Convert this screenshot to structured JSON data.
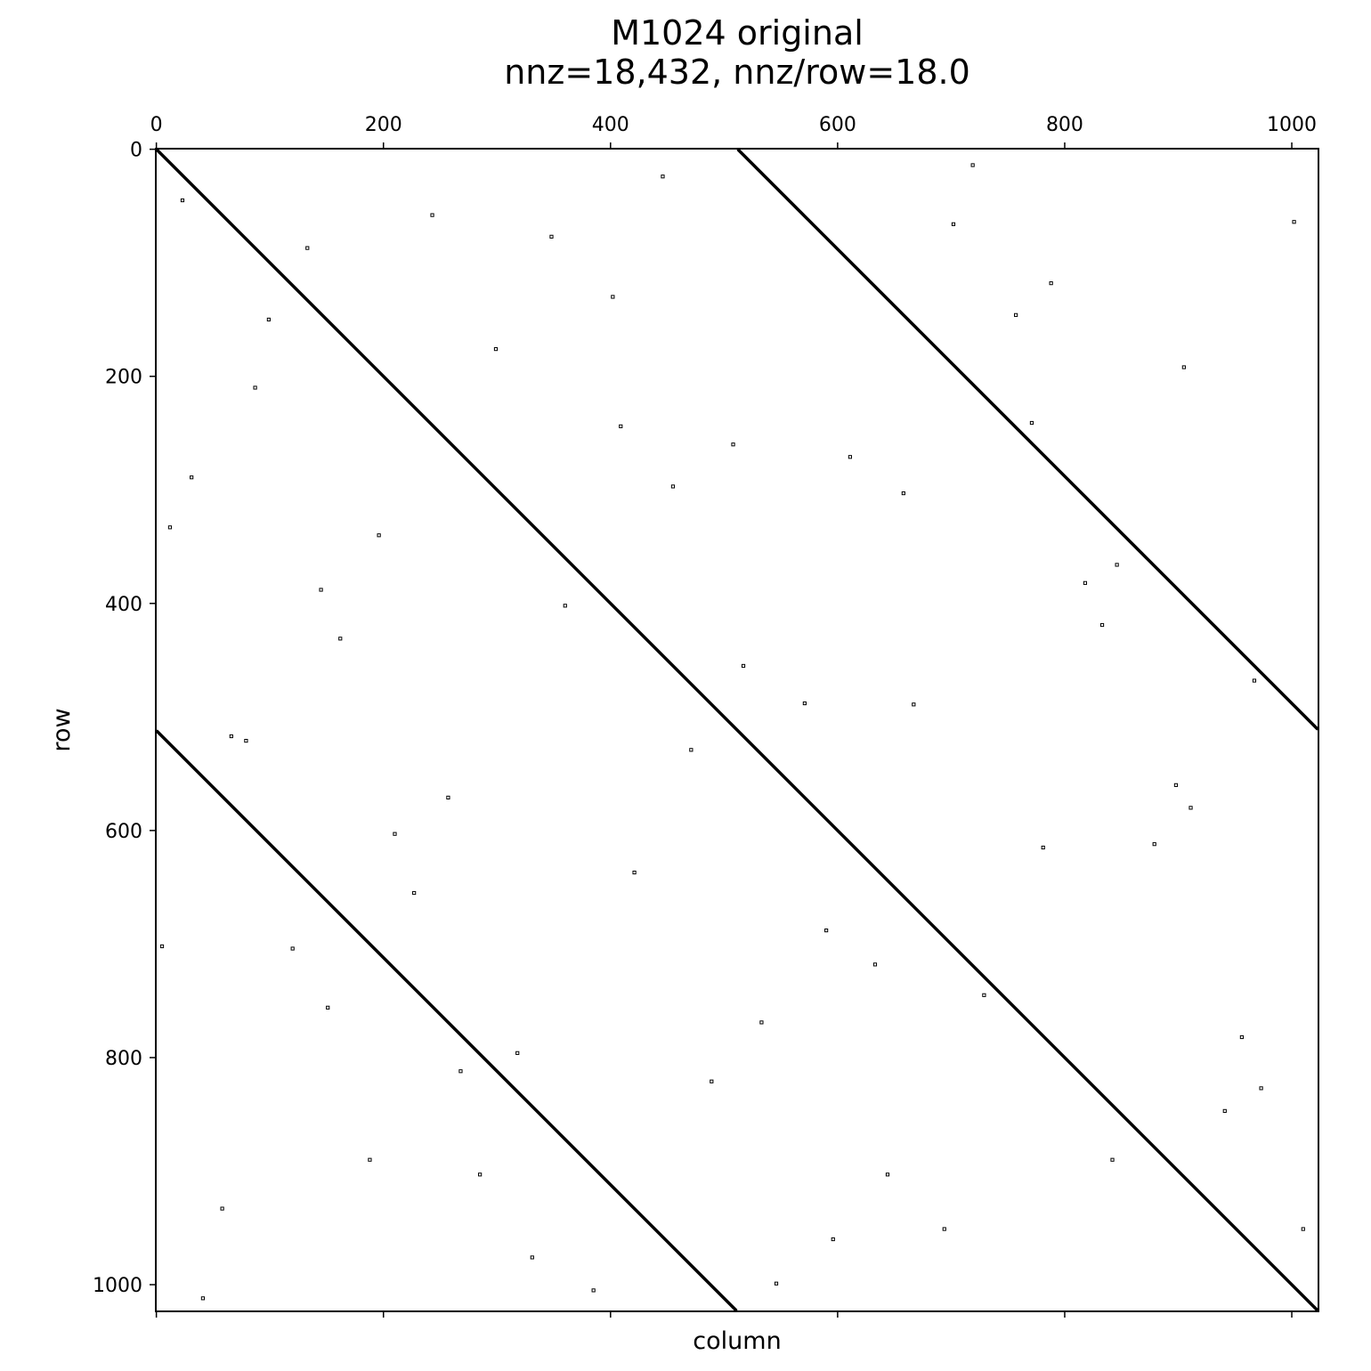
{
  "chart_data": {
    "type": "spy",
    "title": "M1024 original",
    "subtitle": "nnz=18,432, nnz/row=18.0",
    "xlabel": "column",
    "ylabel": "row",
    "xlim": [
      -0.5,
      1023.5
    ],
    "ylim": [
      1023.5,
      -0.5
    ],
    "xticks": [
      0,
      200,
      400,
      600,
      800,
      1000
    ],
    "yticks": [
      0,
      200,
      400,
      600,
      800,
      1000
    ],
    "color": "#000000",
    "diagonals": [
      {
        "x": [
          0,
          1023
        ],
        "y": [
          0,
          1023
        ]
      },
      {
        "x": [
          512,
          1023
        ],
        "y": [
          0,
          511
        ]
      },
      {
        "x": [
          0,
          511
        ],
        "y": [
          512,
          1023
        ]
      }
    ],
    "points": {
      "x": [
        23,
        87,
        145,
        210,
        268,
        331,
        402,
        455,
        517,
        590,
        644,
        702,
        771,
        833,
        898,
        956,
        1010,
        12,
        66,
        120,
        188,
        243,
        299,
        360,
        421,
        489,
        546,
        611,
        667,
        729,
        788,
        846,
        911,
        973,
        41,
        99,
        162,
        227,
        285,
        348,
        409,
        471,
        533,
        596,
        658,
        719,
        781,
        842,
        905,
        967,
        5,
        58,
        133,
        196,
        257,
        318,
        385,
        446,
        508,
        571,
        633,
        694,
        757,
        818,
        879,
        941,
        1002,
        31,
        79,
        151
      ],
      "y": [
        45,
        210,
        388,
        603,
        812,
        976,
        130,
        297,
        455,
        688,
        903,
        66,
        241,
        419,
        560,
        782,
        951,
        333,
        517,
        704,
        890,
        58,
        176,
        402,
        637,
        821,
        999,
        271,
        489,
        745,
        118,
        366,
        580,
        827,
        1012,
        150,
        431,
        655,
        903,
        77,
        244,
        529,
        769,
        960,
        303,
        14,
        615,
        890,
        192,
        468,
        702,
        933,
        87,
        340,
        571,
        796,
        1005,
        24,
        260,
        488,
        718,
        951,
        146,
        382,
        612,
        847,
        64,
        289,
        521,
        756
      ]
    }
  }
}
